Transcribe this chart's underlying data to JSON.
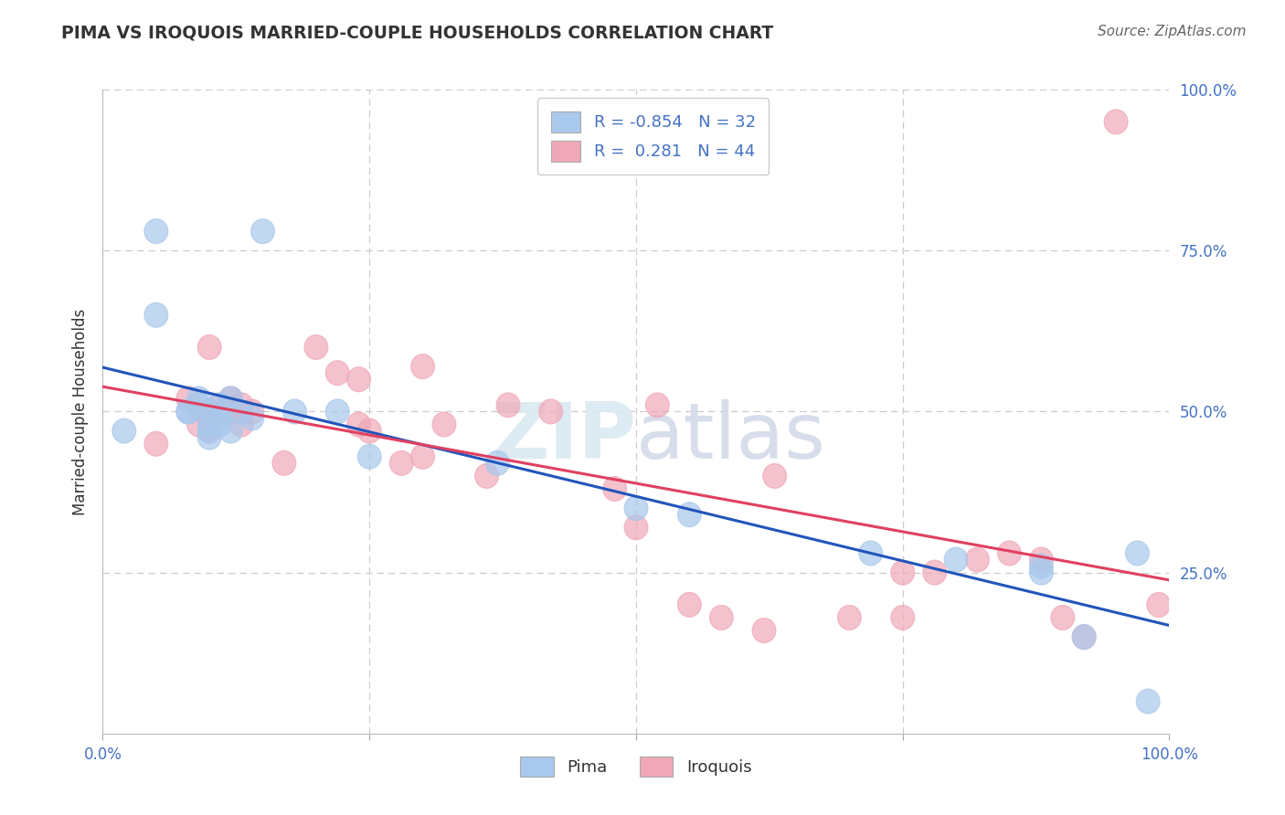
{
  "title": "PIMA VS IROQUOIS MARRIED-COUPLE HOUSEHOLDS CORRELATION CHART",
  "source": "Source: ZipAtlas.com",
  "ylabel": "Married-couple Households",
  "pima_R": -0.854,
  "pima_N": 32,
  "iroquois_R": 0.281,
  "iroquois_N": 44,
  "pima_color": "#a8c8ec",
  "iroquois_color": "#f0a8b8",
  "pima_line_color": "#2255bb",
  "iroquois_line_color": "#e04060",
  "pima_x": [
    2,
    5,
    5,
    8,
    8,
    9,
    9,
    10,
    10,
    10,
    10,
    11,
    11,
    11,
    12,
    12,
    13,
    14,
    15,
    18,
    22,
    25,
    37,
    50,
    55,
    72,
    80,
    88,
    88,
    92,
    97,
    98
  ],
  "pima_y": [
    47,
    78,
    65,
    50,
    50,
    52,
    51,
    50,
    48,
    47,
    46,
    51,
    49,
    48,
    52,
    47,
    50,
    49,
    78,
    50,
    50,
    43,
    42,
    35,
    34,
    28,
    27,
    26,
    25,
    15,
    28,
    5
  ],
  "iroquois_x": [
    5,
    8,
    9,
    10,
    10,
    10,
    11,
    12,
    12,
    13,
    13,
    14,
    17,
    20,
    22,
    24,
    24,
    25,
    28,
    30,
    32,
    36,
    38,
    42,
    48,
    50,
    52,
    55,
    58,
    62,
    63,
    70,
    75,
    75,
    78,
    82,
    85,
    88,
    90,
    92,
    95,
    99,
    10,
    30
  ],
  "iroquois_y": [
    45,
    52,
    48,
    50,
    49,
    47,
    51,
    52,
    50,
    48,
    51,
    50,
    42,
    60,
    56,
    55,
    48,
    47,
    42,
    57,
    48,
    40,
    51,
    50,
    38,
    32,
    51,
    20,
    18,
    16,
    40,
    18,
    18,
    25,
    25,
    27,
    28,
    27,
    18,
    15,
    95,
    20,
    60,
    43
  ],
  "xlim": [
    0,
    100
  ],
  "ylim": [
    0,
    100
  ],
  "background_color": "#ffffff",
  "grid_color": "#cccccc",
  "label_color": "#4472c4",
  "text_color": "#333333"
}
